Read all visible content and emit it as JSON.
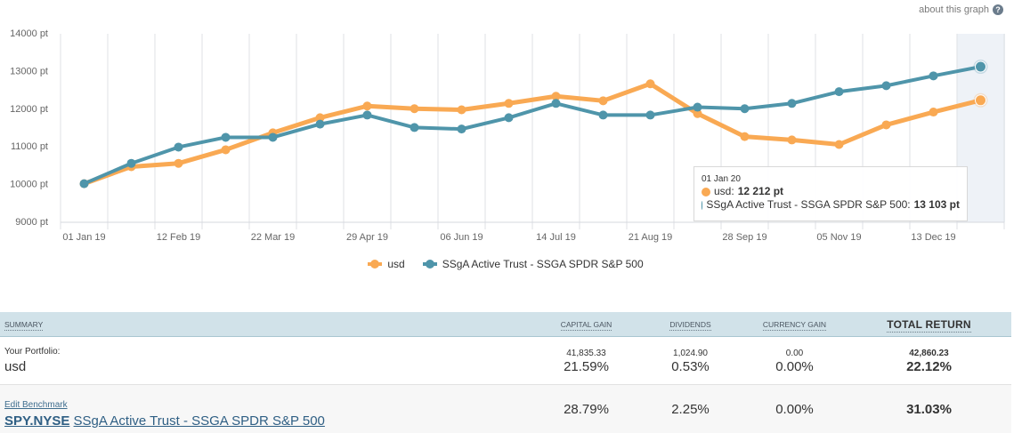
{
  "header": {
    "about_label": "about this graph",
    "about_icon": "question-circle-icon",
    "about_icon_glyph": "?"
  },
  "chart_data": {
    "type": "line",
    "title": "",
    "xlabel": "",
    "ylabel": "",
    "ylim": [
      9000,
      14000
    ],
    "y_ticks": [
      9000,
      10000,
      11000,
      12000,
      13000,
      14000
    ],
    "y_tick_suffix": " pt",
    "x_tick_labels": [
      "01 Jan 19",
      "12 Feb 19",
      "22 Mar 19",
      "29 Apr 19",
      "06 Jun 19",
      "14 Jul 19",
      "21 Aug 19",
      "28 Sep 19",
      "05 Nov 19",
      "13 Dec 19"
    ],
    "x_points": 20,
    "grid": true,
    "highlighted_point_index": 19,
    "legend_position": "bottom-center",
    "series": [
      {
        "name": "usd",
        "color": "#f9a953",
        "values": [
          10000,
          10450,
          10540,
          10900,
          11350,
          11750,
          12060,
          11990,
          11960,
          12130,
          12320,
          12200,
          12650,
          11860,
          11250,
          11160,
          11040,
          11560,
          11900,
          12212
        ]
      },
      {
        "name": "SSgA Active Trust - SSGA SPDR S&P 500",
        "color": "#4f95aa",
        "values": [
          10000,
          10540,
          10970,
          11230,
          11230,
          11580,
          11820,
          11490,
          11450,
          11750,
          12130,
          11820,
          11820,
          12030,
          11990,
          12130,
          12440,
          12600,
          12860,
          13103
        ]
      }
    ]
  },
  "tooltip": {
    "date": "01 Jan 20",
    "rows": [
      {
        "label": "usd: ",
        "value": "12 212 pt",
        "color": "#f9a953"
      },
      {
        "label": "SSgA Active Trust - SSGA SPDR S&P 500: ",
        "value": "13 103 pt",
        "color": "#4f95aa"
      }
    ]
  },
  "legend": [
    {
      "label": "usd",
      "color": "#f9a953"
    },
    {
      "label": "SSgA Active Trust - SSGA SPDR S&P 500",
      "color": "#4f95aa"
    }
  ],
  "summary": {
    "headers": {
      "summary": "Summary",
      "capital_gain": "Capital Gain",
      "dividends": "Dividends",
      "currency_gain": "Currency Gain",
      "total_return": "TOTAL RETURN"
    },
    "portfolio": {
      "label": "Your Portfolio:",
      "name": "usd",
      "capital_gain_amount": "41,835.33",
      "capital_gain_pct": "21.59%",
      "dividends_amount": "1,024.90",
      "dividends_pct": "0.53%",
      "currency_gain_amount": "0.00",
      "currency_gain_pct": "0.00%",
      "total_return_amount": "42,860.23",
      "total_return_pct": "22.12%"
    },
    "benchmark": {
      "edit_label": "Edit Benchmark",
      "ticker": "SPY.NYSE",
      "name": "SSgA Active Trust - SSGA SPDR S&P 500",
      "capital_gain_pct": "28.79%",
      "dividends_pct": "2.25%",
      "currency_gain_pct": "0.00%",
      "total_return_pct": "31.03%"
    }
  }
}
